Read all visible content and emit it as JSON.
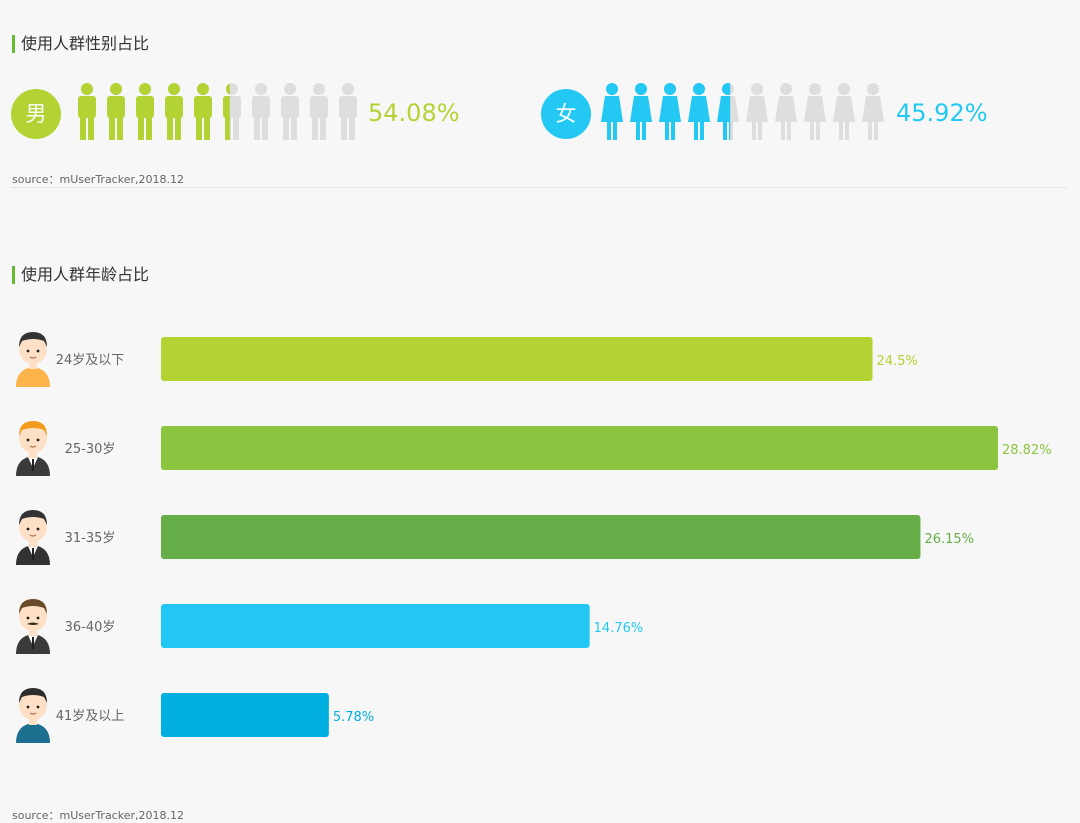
{
  "gender_section": {
    "title": "使用人群性别占比",
    "source": "source：mUserTracker,2018.12",
    "male": {
      "label": "男",
      "percent_text": "54.08%",
      "icon": "male-person-icon",
      "color": "#b3d334"
    },
    "female": {
      "label": "女",
      "percent_text": "45.92%",
      "icon": "female-person-icon",
      "color": "#23c9f2"
    },
    "icon_inactive_color": "#dedede"
  },
  "age_section": {
    "title": "使用人群年龄占比",
    "source": "source：mUserTracker,2018.12"
  },
  "chart_data": [
    {
      "type": "bar",
      "orientation": "horizontal",
      "title": "使用人群性别占比",
      "categories": [
        "男",
        "女"
      ],
      "values": [
        54.08,
        45.92
      ],
      "value_labels": [
        "54.08%",
        "45.92%"
      ],
      "colors": [
        "#b3d334",
        "#23c9f2"
      ]
    },
    {
      "type": "bar",
      "orientation": "horizontal",
      "title": "使用人群年龄占比",
      "categories": [
        "24岁及以下",
        "25-30岁",
        "31-35岁",
        "36-40岁",
        "41岁及以上"
      ],
      "values": [
        24.5,
        28.82,
        26.15,
        14.76,
        5.78
      ],
      "value_labels": [
        "24.5%",
        "28.82%",
        "26.15%",
        "14.76%",
        "5.78%"
      ],
      "colors": [
        "#b3d334",
        "#8bc53f",
        "#66ae47",
        "#22c8f3",
        "#00aedf"
      ],
      "avatar_icons": [
        "young-man-avatar-icon",
        "blond-man-avatar-icon",
        "suited-man-avatar-icon",
        "mustache-man-avatar-icon",
        "older-man-avatar-icon"
      ],
      "grid": false
    }
  ]
}
